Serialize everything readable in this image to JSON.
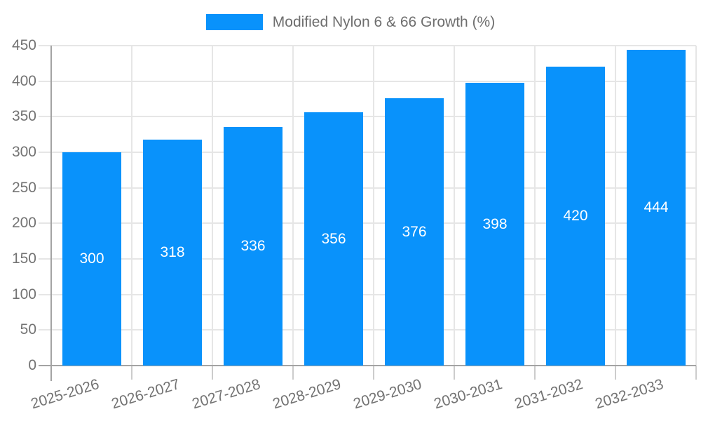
{
  "legend": {
    "label": "Modified Nylon 6 & 66 Growth (%)"
  },
  "colors": {
    "bar": "#0992fb",
    "grid_line": "#e6e6e6",
    "axis_line": "#a3a3a3",
    "tick_line": "#cccccc",
    "axis_label": "#737373",
    "value_label": "#ffffff"
  },
  "chart_data": {
    "type": "bar",
    "title": "Modified Nylon 6 & 66 Growth (%)",
    "categories": [
      "2025-2026",
      "2026-2027",
      "2027-2028",
      "2028-2029",
      "2029-2030",
      "2030-2031",
      "2031-2032",
      "2032-2033"
    ],
    "series": [
      {
        "name": "Modified Nylon 6 & 66 Growth (%)",
        "values": [
          300,
          318,
          336,
          356,
          376,
          398,
          420,
          444
        ]
      }
    ],
    "xlabel": "",
    "ylabel": "",
    "ylim": [
      0,
      450
    ],
    "yticks": [
      0,
      50,
      100,
      150,
      200,
      250,
      300,
      350,
      400,
      450
    ],
    "grid": true,
    "legend_position": "top-center",
    "value_label_position": "inside-middle",
    "x_label_rotation_deg": -17
  }
}
